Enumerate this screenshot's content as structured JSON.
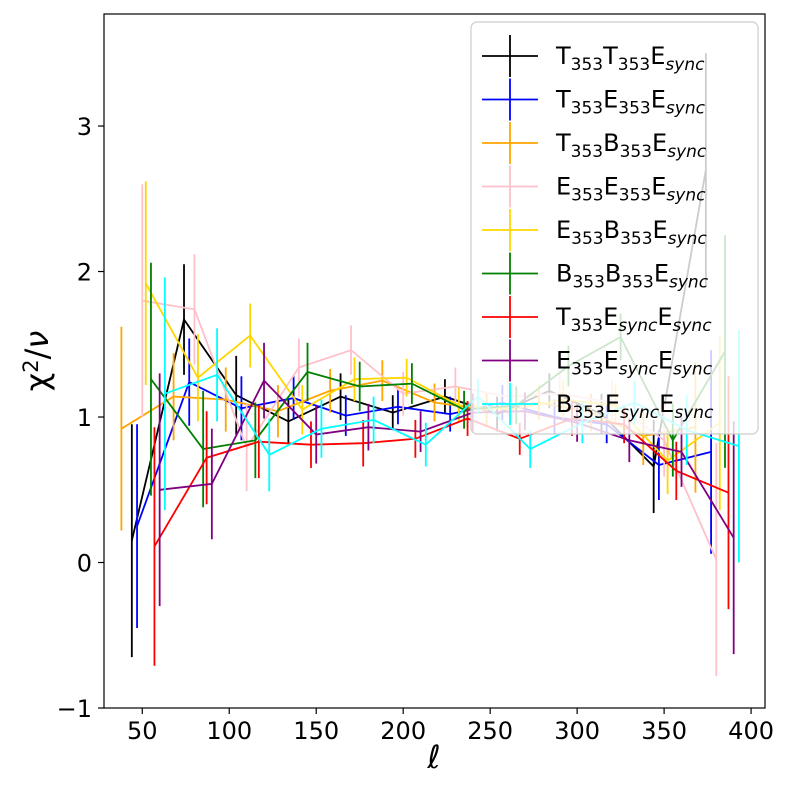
{
  "chart_data": {
    "type": "line",
    "xlabel": "ℓ",
    "ylabel": "χ²/ν",
    "xlim": [
      28,
      408
    ],
    "ylim": [
      -1,
      3.77
    ],
    "xticks": [
      50,
      100,
      150,
      200,
      250,
      300,
      350,
      400
    ],
    "yticks": [
      -1,
      0,
      1,
      2,
      3
    ],
    "xtick_labels": [
      "50",
      "100",
      "150",
      "200",
      "250",
      "300",
      "350",
      "400"
    ],
    "ytick_labels": [
      "−1",
      "0",
      "1",
      "2",
      "3"
    ],
    "legend_position": "top-right",
    "series": [
      {
        "name": "T353T353Esync",
        "parts": [
          [
            "T",
            "353",
            "T",
            "353",
            "E",
            "sync"
          ]
        ],
        "color": "#000000",
        "x": [
          44,
          74,
          104,
          134,
          164,
          194,
          224,
          254,
          284,
          314,
          344,
          374
        ],
        "y": [
          0.15,
          1.67,
          1.15,
          0.97,
          1.14,
          1.03,
          1.14,
          1.02,
          1.18,
          1.02,
          0.66,
          2.7
        ],
        "err": [
          0.8,
          0.38,
          0.27,
          0.15,
          0.16,
          0.12,
          0.12,
          0.12,
          0.12,
          0.14,
          0.32,
          0.8
        ]
      },
      {
        "name": "T353E353Esync",
        "color": "#0000ff",
        "x": [
          47,
          77,
          107,
          137,
          167,
          197,
          227,
          257,
          287,
          317,
          347,
          377
        ],
        "y": [
          0.25,
          1.24,
          1.06,
          1.13,
          1.01,
          1.07,
          1.02,
          1.1,
          1.0,
          0.95,
          0.67,
          0.76
        ],
        "err": [
          0.7,
          0.3,
          0.22,
          0.15,
          0.14,
          0.12,
          0.12,
          0.12,
          0.12,
          0.13,
          0.24,
          0.7
        ]
      },
      {
        "name": "T353B353Esync",
        "color": "#ffa500",
        "x": [
          38,
          68,
          98,
          128,
          158,
          188,
          218,
          248,
          278,
          308,
          338,
          368
        ],
        "y": [
          0.92,
          1.14,
          1.12,
          1.04,
          1.18,
          1.25,
          1.1,
          1.05,
          1.1,
          1.03,
          0.87,
          0.93
        ],
        "err": [
          0.7,
          0.3,
          0.22,
          0.18,
          0.15,
          0.14,
          0.13,
          0.12,
          0.12,
          0.13,
          0.2,
          0.45
        ]
      },
      {
        "name": "E353E353Esync",
        "color": "#ffc0cb",
        "x": [
          50,
          80,
          110,
          140,
          170,
          200,
          230,
          260,
          290,
          320,
          350,
          380
        ],
        "y": [
          1.8,
          1.74,
          0.79,
          1.34,
          1.46,
          1.16,
          1.21,
          1.14,
          1.16,
          1.1,
          0.84,
          0.02
        ],
        "err": [
          0.8,
          0.38,
          0.3,
          0.2,
          0.17,
          0.15,
          0.13,
          0.14,
          0.14,
          0.15,
          0.25,
          0.8
        ]
      },
      {
        "name": "E353B353Esync",
        "color": "#ffd700",
        "x": [
          52,
          82,
          112,
          142,
          172,
          202,
          232,
          262,
          292,
          322,
          352,
          382
        ],
        "y": [
          1.92,
          1.27,
          1.56,
          1.05,
          1.26,
          1.27,
          1.08,
          1.05,
          1.12,
          1.08,
          0.7,
          0.96
        ],
        "err": [
          0.7,
          0.3,
          0.22,
          0.17,
          0.15,
          0.13,
          0.12,
          0.13,
          0.13,
          0.14,
          0.23,
          0.6
        ]
      },
      {
        "name": "B353B353Esync",
        "color": "#008000",
        "x": [
          55,
          85,
          115,
          145,
          175,
          205,
          235,
          265,
          295,
          325,
          355,
          385
        ],
        "y": [
          1.26,
          0.78,
          0.84,
          1.31,
          1.21,
          1.23,
          1.05,
          1.08,
          1.35,
          1.55,
          0.84,
          1.45
        ],
        "err": [
          0.8,
          0.4,
          0.26,
          0.2,
          0.17,
          0.14,
          0.13,
          0.13,
          0.14,
          0.16,
          0.25,
          0.8
        ]
      },
      {
        "name": "T353EsyncEsync",
        "color": "#ff0000",
        "x": [
          57,
          87,
          117,
          147,
          177,
          207,
          237,
          267,
          297,
          327,
          357,
          387
        ],
        "y": [
          0.11,
          0.72,
          0.83,
          0.81,
          0.82,
          0.85,
          0.99,
          0.85,
          0.99,
          0.95,
          0.63,
          0.48
        ],
        "err": [
          0.82,
          0.32,
          0.25,
          0.16,
          0.16,
          0.13,
          0.12,
          0.11,
          0.12,
          0.13,
          0.2,
          0.8
        ]
      },
      {
        "name": "E353EsyncEsync",
        "color": "#800080",
        "x": [
          60,
          90,
          120,
          150,
          180,
          210,
          240,
          270,
          300,
          330,
          360,
          390
        ],
        "y": [
          0.5,
          0.54,
          1.25,
          0.88,
          0.93,
          0.9,
          1.03,
          1.04,
          0.96,
          0.84,
          0.76,
          0.17
        ],
        "err": [
          0.8,
          0.38,
          0.26,
          0.2,
          0.16,
          0.14,
          0.13,
          0.13,
          0.13,
          0.15,
          0.24,
          0.8
        ]
      },
      {
        "name": "B353EsyncEsync",
        "color": "#00ffff",
        "x": [
          63,
          93,
          123,
          153,
          183,
          213,
          243,
          273,
          303,
          333,
          363,
          393
        ],
        "y": [
          1.16,
          1.29,
          0.74,
          0.92,
          0.98,
          0.81,
          1.14,
          0.78,
          0.96,
          1.1,
          0.91,
          0.8
        ],
        "err": [
          0.8,
          0.32,
          0.25,
          0.2,
          0.16,
          0.15,
          0.12,
          0.13,
          0.14,
          0.15,
          0.24,
          0.8
        ]
      }
    ],
    "legend": [
      [
        {
          "t": "T"
        },
        {
          "t": "353",
          "sub": true
        },
        {
          "t": "T"
        },
        {
          "t": "353",
          "sub": true
        },
        {
          "t": "E"
        },
        {
          "t": "sync",
          "sub": true,
          "it": true
        }
      ],
      [
        {
          "t": "T"
        },
        {
          "t": "353",
          "sub": true
        },
        {
          "t": "E"
        },
        {
          "t": "353",
          "sub": true
        },
        {
          "t": "E"
        },
        {
          "t": "sync",
          "sub": true,
          "it": true
        }
      ],
      [
        {
          "t": "T"
        },
        {
          "t": "353",
          "sub": true
        },
        {
          "t": "B"
        },
        {
          "t": "353",
          "sub": true
        },
        {
          "t": "E"
        },
        {
          "t": "sync",
          "sub": true,
          "it": true
        }
      ],
      [
        {
          "t": "E"
        },
        {
          "t": "353",
          "sub": true
        },
        {
          "t": "E"
        },
        {
          "t": "353",
          "sub": true
        },
        {
          "t": "E"
        },
        {
          "t": "sync",
          "sub": true,
          "it": true
        }
      ],
      [
        {
          "t": "E"
        },
        {
          "t": "353",
          "sub": true
        },
        {
          "t": "B"
        },
        {
          "t": "353",
          "sub": true
        },
        {
          "t": "E"
        },
        {
          "t": "sync",
          "sub": true,
          "it": true
        }
      ],
      [
        {
          "t": "B"
        },
        {
          "t": "353",
          "sub": true
        },
        {
          "t": "B"
        },
        {
          "t": "353",
          "sub": true
        },
        {
          "t": "E"
        },
        {
          "t": "sync",
          "sub": true,
          "it": true
        }
      ],
      [
        {
          "t": "T"
        },
        {
          "t": "353",
          "sub": true
        },
        {
          "t": "E"
        },
        {
          "t": "sync",
          "sub": true,
          "it": true
        },
        {
          "t": "E"
        },
        {
          "t": "sync",
          "sub": true,
          "it": true
        }
      ],
      [
        {
          "t": "E"
        },
        {
          "t": "353",
          "sub": true
        },
        {
          "t": "E"
        },
        {
          "t": "sync",
          "sub": true,
          "it": true
        },
        {
          "t": "E"
        },
        {
          "t": "sync",
          "sub": true,
          "it": true
        }
      ],
      [
        {
          "t": "B"
        },
        {
          "t": "353",
          "sub": true
        },
        {
          "t": "E"
        },
        {
          "t": "sync",
          "sub": true,
          "it": true
        },
        {
          "t": "E"
        },
        {
          "t": "sync",
          "sub": true,
          "it": true
        }
      ]
    ]
  }
}
